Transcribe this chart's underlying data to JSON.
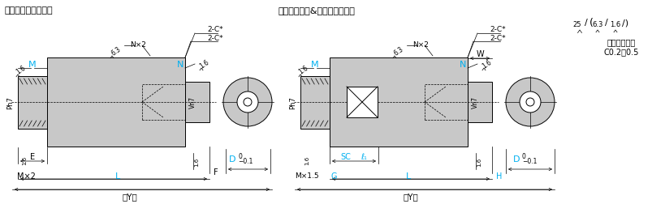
{
  "title_left": "（インロー部固定）",
  "title_right": "（インロー部&スパナ溝指定）",
  "bg_color": "#ffffff",
  "cyan": "#00b0f0",
  "gray_fill": "#c8c8c8",
  "gray_dark": "#969696",
  "line_color": "#000000",
  "note_line1": "＊コーナーは",
  "note_line2": "C0.2～0.5"
}
